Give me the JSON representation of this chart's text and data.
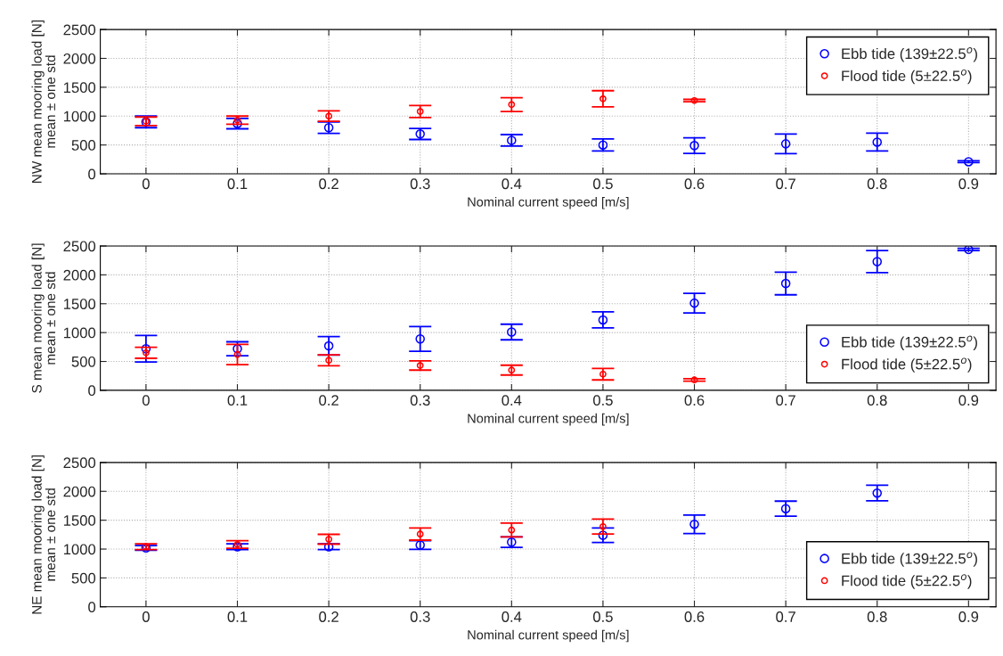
{
  "chart_data": [
    {
      "type": "scatter",
      "xlabel": "Nominal current speed [m/s]",
      "ylabel": "NW mean mooring load [N]\nmean ± one std",
      "x": [
        0,
        0.1,
        0.2,
        0.3,
        0.4,
        0.5,
        0.6,
        0.7,
        0.8,
        0.9
      ],
      "xlim": [
        -0.05,
        0.93
      ],
      "xticks": [
        0,
        0.1,
        0.2,
        0.3,
        0.4,
        0.5,
        0.6,
        0.7,
        0.8,
        0.9
      ],
      "ylim": [
        0,
        2500
      ],
      "yticks": [
        0,
        500,
        1000,
        1500,
        2000,
        2500
      ],
      "grid": true,
      "legend": "top right",
      "marker": "circle",
      "series": [
        {
          "name": "Ebb tide (139±22.5$^{o}$)",
          "color": "#0000ff",
          "values": [
            900,
            870,
            800,
            690,
            580,
            500,
            490,
            520,
            550,
            210
          ],
          "errors": [
            100,
            90,
            100,
            95,
            100,
            105,
            135,
            170,
            155,
            15
          ]
        },
        {
          "name": "Flood tide (5±22.5$^{o}$)",
          "color": "#ff0000",
          "x": [
            0,
            0.1,
            0.2,
            0.3,
            0.4,
            0.5,
            0.6
          ],
          "values": [
            910,
            930,
            1000,
            1080,
            1200,
            1300,
            1270
          ],
          "errors": [
            75,
            70,
            90,
            105,
            120,
            140,
            20
          ]
        }
      ]
    },
    {
      "type": "scatter",
      "xlabel": "Nominal current speed [m/s]",
      "ylabel": "S mean mooring load [N]\nmean ± one std",
      "x": [
        0,
        0.1,
        0.2,
        0.3,
        0.4,
        0.5,
        0.6,
        0.7,
        0.8,
        0.9
      ],
      "xlim": [
        -0.05,
        0.93
      ],
      "xticks": [
        0,
        0.1,
        0.2,
        0.3,
        0.4,
        0.5,
        0.6,
        0.7,
        0.8,
        0.9
      ],
      "ylim": [
        0,
        2500
      ],
      "yticks": [
        0,
        500,
        1000,
        1500,
        2000,
        2500
      ],
      "grid": true,
      "legend": "bottom right",
      "marker": "circle",
      "series": [
        {
          "name": "Ebb tide (139±22.5$^{o}$)",
          "color": "#0000ff",
          "values": [
            720,
            720,
            770,
            890,
            1010,
            1220,
            1510,
            1850,
            2230,
            2440
          ],
          "errors": [
            230,
            120,
            160,
            215,
            135,
            140,
            170,
            195,
            190,
            20
          ]
        },
        {
          "name": "Flood tide (5±22.5$^{o}$)",
          "color": "#ff0000",
          "x": [
            0,
            0.1,
            0.2,
            0.3,
            0.4,
            0.5,
            0.6
          ],
          "values": [
            650,
            620,
            520,
            430,
            350,
            280,
            180
          ],
          "errors": [
            95,
            175,
            95,
            80,
            85,
            100,
            20
          ]
        }
      ]
    },
    {
      "type": "scatter",
      "xlabel": "Nominal current speed [m/s]",
      "ylabel": "NE mean mooring load [N]\nmean ± one std",
      "x": [
        0,
        0.1,
        0.2,
        0.3,
        0.4,
        0.5,
        0.6,
        0.7,
        0.8
      ],
      "xlim": [
        -0.05,
        0.93
      ],
      "xticks": [
        0,
        0.1,
        0.2,
        0.3,
        0.4,
        0.5,
        0.6,
        0.7,
        0.8,
        0.9
      ],
      "ylim": [
        0,
        2500
      ],
      "yticks": [
        0,
        500,
        1000,
        1500,
        2000,
        2500
      ],
      "grid": true,
      "legend": "bottom right",
      "marker": "circle",
      "series": [
        {
          "name": "Ebb tide (139±22.5$^{o}$)",
          "color": "#0000ff",
          "values": [
            1020,
            1040,
            1040,
            1070,
            1120,
            1240,
            1430,
            1700,
            1970
          ],
          "errors": [
            40,
            50,
            50,
            75,
            90,
            125,
            160,
            130,
            135
          ]
        },
        {
          "name": "Flood tide (5±22.5$^{o}$)",
          "color": "#ff0000",
          "x": [
            0,
            0.1,
            0.2,
            0.3,
            0.4,
            0.5
          ],
          "values": [
            1040,
            1080,
            1170,
            1260,
            1330,
            1390
          ],
          "errors": [
            50,
            65,
            85,
            105,
            120,
            130
          ]
        }
      ]
    }
  ]
}
